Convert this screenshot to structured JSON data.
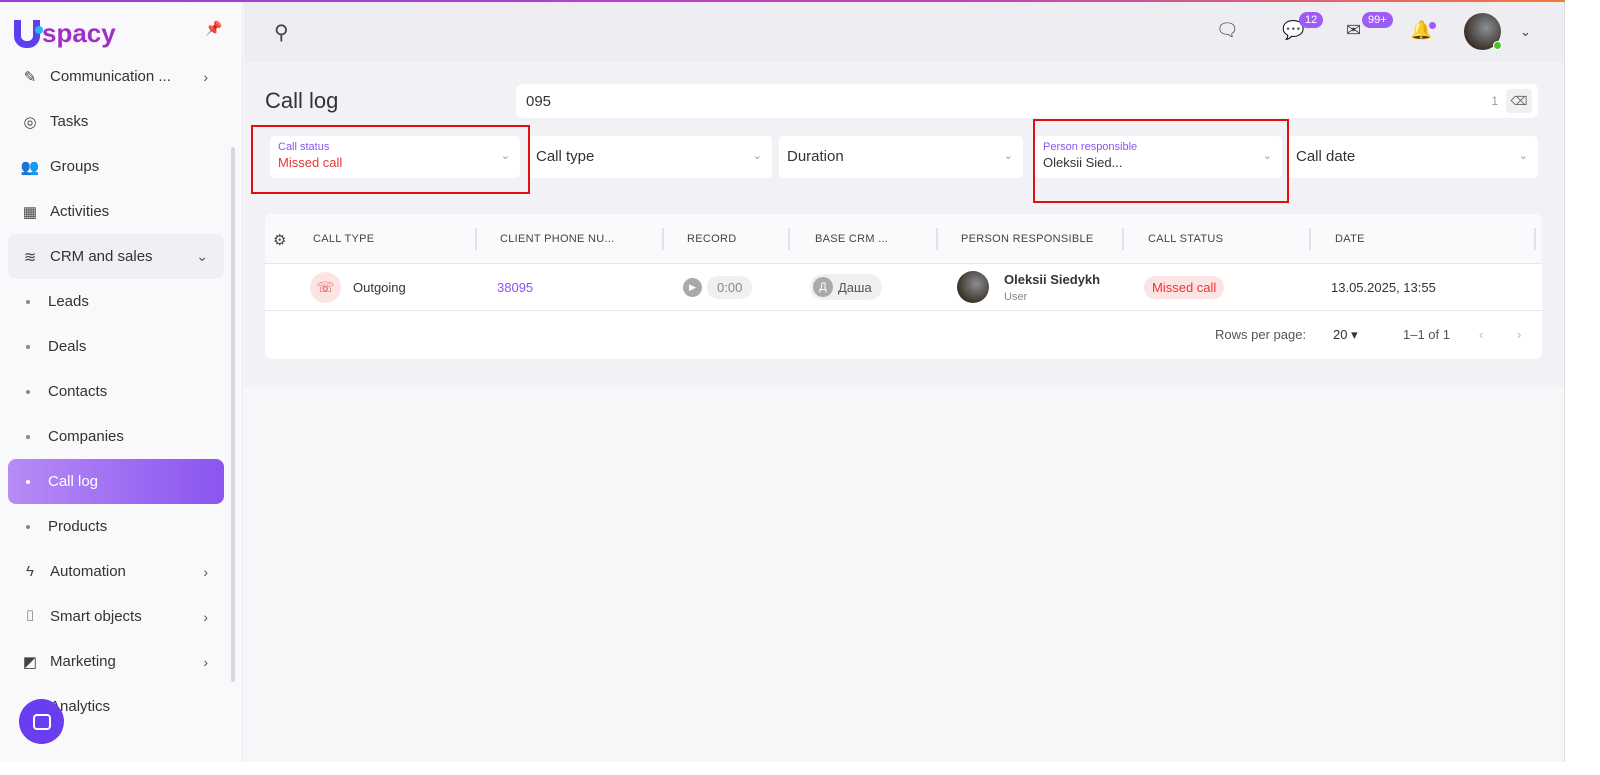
{
  "brand": "spacy",
  "sidebar": {
    "items": [
      {
        "label": "Communication ...",
        "icon": "chat-check-icon",
        "chevron": true
      },
      {
        "label": "Tasks",
        "icon": "check-circle-icon"
      },
      {
        "label": "Groups",
        "icon": "users-icon"
      },
      {
        "label": "Activities",
        "icon": "calendar-check-icon"
      },
      {
        "label": "CRM and sales",
        "icon": "database-icon",
        "expanded": true
      },
      {
        "label": "Leads",
        "sub": true
      },
      {
        "label": "Deals",
        "sub": true
      },
      {
        "label": "Contacts",
        "sub": true
      },
      {
        "label": "Companies",
        "sub": true
      },
      {
        "label": "Call log",
        "sub": true,
        "active": true
      },
      {
        "label": "Products",
        "sub": true
      },
      {
        "label": "Automation",
        "icon": "bolt-icon",
        "chevron": true
      },
      {
        "label": "Smart objects",
        "icon": "scan-icon",
        "chevron": true
      },
      {
        "label": "Marketing",
        "icon": "chart-icon",
        "chevron": true
      },
      {
        "label": "Analytics",
        "icon": "analytics-icon"
      }
    ]
  },
  "header": {
    "chats_badge": "12",
    "mail_badge": "99+"
  },
  "page": {
    "title": "Call log",
    "search_value": "095",
    "search_count": "1"
  },
  "filters": {
    "call_status": {
      "label": "Call status",
      "value": "Missed call"
    },
    "call_type": "Call type",
    "duration": "Duration",
    "person": {
      "label": "Person responsible",
      "value": "Oleksii Sied..."
    },
    "call_date": "Call date"
  },
  "table": {
    "columns": [
      "CALL TYPE",
      "CLIENT PHONE NU...",
      "RECORD",
      "BASE CRM ...",
      "PERSON RESPONSIBLE",
      "CALL STATUS",
      "DATE"
    ],
    "rows": [
      {
        "call_type": "Outgoing",
        "phone": "38095",
        "record": "0:00",
        "crm_initial": "Д",
        "crm": "Даша",
        "person": "Oleksii Siedykh",
        "role": "User",
        "status": "Missed call",
        "date": "13.05.2025, 13:55"
      }
    ]
  },
  "pager": {
    "rows_label": "Rows per page:",
    "rows_value": "20",
    "range": "1–1 of 1"
  },
  "colors": {
    "accent": "#8a55f0",
    "missed": "#e53935"
  }
}
